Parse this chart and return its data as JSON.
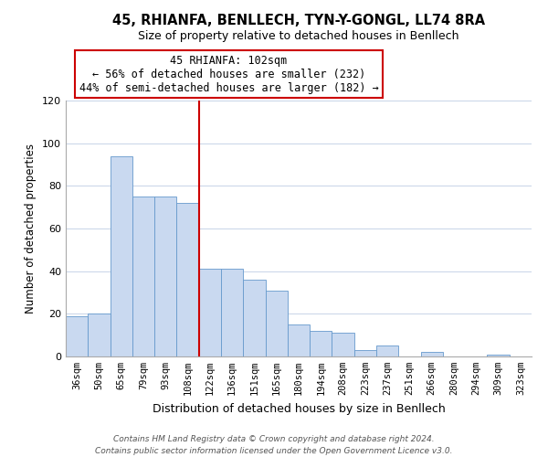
{
  "title": "45, RHIANFA, BENLLECH, TYN-Y-GONGL, LL74 8RA",
  "subtitle": "Size of property relative to detached houses in Benllech",
  "xlabel": "Distribution of detached houses by size in Benllech",
  "ylabel": "Number of detached properties",
  "footer_line1": "Contains HM Land Registry data © Crown copyright and database right 2024.",
  "footer_line2": "Contains public sector information licensed under the Open Government Licence v3.0.",
  "bar_labels": [
    "36sqm",
    "50sqm",
    "65sqm",
    "79sqm",
    "93sqm",
    "108sqm",
    "122sqm",
    "136sqm",
    "151sqm",
    "165sqm",
    "180sqm",
    "194sqm",
    "208sqm",
    "223sqm",
    "237sqm",
    "251sqm",
    "266sqm",
    "280sqm",
    "294sqm",
    "309sqm",
    "323sqm"
  ],
  "bar_values": [
    19,
    20,
    94,
    75,
    75,
    72,
    41,
    41,
    36,
    31,
    15,
    12,
    11,
    3,
    5,
    0,
    2,
    0,
    0,
    1,
    0
  ],
  "bar_color": "#c9d9f0",
  "bar_edge_color": "#6699cc",
  "vline_x_index": 5,
  "vline_color": "#cc0000",
  "annotation_line1": "45 RHIANFA: 102sqm",
  "annotation_line2": "← 56% of detached houses are smaller (232)",
  "annotation_line3": "44% of semi-detached houses are larger (182) →",
  "annotation_box_color": "#ffffff",
  "annotation_box_edge": "#cc0000",
  "ylim": [
    0,
    120
  ],
  "yticks": [
    0,
    20,
    40,
    60,
    80,
    100,
    120
  ],
  "background_color": "#ffffff",
  "grid_color": "#c8d4e8",
  "title_fontsize": 10.5,
  "subtitle_fontsize": 9,
  "ylabel_fontsize": 8.5,
  "xlabel_fontsize": 9,
  "tick_fontsize": 7.5,
  "footer_fontsize": 6.5
}
